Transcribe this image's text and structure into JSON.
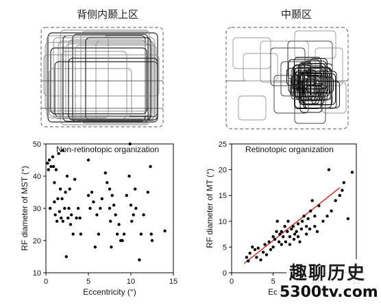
{
  "titles": {
    "left": "背侧内颞上区",
    "right": "中颞区"
  },
  "watermark": {
    "brand": "趣聊历史",
    "url": "5300tv.com"
  },
  "chart_data": [
    {
      "type": "scatter",
      "title": "Non-retinotopic organization",
      "xlabel": "Eccentricity (°)",
      "ylabel": "RF diameter of MST (°)",
      "xlim": [
        0,
        15
      ],
      "ylim": [
        10,
        50
      ],
      "xticks": [
        0,
        5,
        10,
        15
      ],
      "yticks": [
        10,
        20,
        30,
        40,
        50
      ],
      "points": [
        [
          0.2,
          44
        ],
        [
          0.3,
          42
        ],
        [
          0.4,
          45
        ],
        [
          0.5,
          30
        ],
        [
          0.6,
          43
        ],
        [
          0.8,
          46
        ],
        [
          0.9,
          43
        ],
        [
          1.0,
          38
        ],
        [
          1.0,
          32
        ],
        [
          1.1,
          28
        ],
        [
          1.2,
          42
        ],
        [
          1.3,
          26
        ],
        [
          1.4,
          33
        ],
        [
          1.5,
          47
        ],
        [
          1.6,
          29
        ],
        [
          1.7,
          36
        ],
        [
          1.8,
          27
        ],
        [
          1.9,
          33
        ],
        [
          2.0,
          48
        ],
        [
          2.0,
          26
        ],
        [
          2.2,
          30
        ],
        [
          2.3,
          35
        ],
        [
          2.4,
          15
        ],
        [
          2.5,
          40
        ],
        [
          2.6,
          27
        ],
        [
          2.7,
          30
        ],
        [
          2.8,
          36
        ],
        [
          2.9,
          25
        ],
        [
          3.0,
          28
        ],
        [
          3.2,
          22
        ],
        [
          3.4,
          39
        ],
        [
          3.6,
          27
        ],
        [
          3.8,
          30
        ],
        [
          4.0,
          27
        ],
        [
          4.1,
          22
        ],
        [
          5.0,
          45
        ],
        [
          5.0,
          34
        ],
        [
          5.2,
          30
        ],
        [
          5.4,
          35
        ],
        [
          5.6,
          32
        ],
        [
          5.8,
          18
        ],
        [
          6.0,
          28
        ],
        [
          6.2,
          22
        ],
        [
          6.4,
          30
        ],
        [
          6.6,
          33
        ],
        [
          7.0,
          41
        ],
        [
          7.2,
          38
        ],
        [
          7.5,
          36
        ],
        [
          7.5,
          30
        ],
        [
          7.6,
          26
        ],
        [
          7.7,
          18
        ],
        [
          7.8,
          34
        ],
        [
          8.0,
          31
        ],
        [
          8.2,
          28
        ],
        [
          8.4,
          22
        ],
        [
          8.6,
          25
        ],
        [
          8.8,
          20
        ],
        [
          9.0,
          20
        ],
        [
          9.2,
          22
        ],
        [
          9.5,
          34
        ],
        [
          9.8,
          40
        ],
        [
          9.9,
          50
        ],
        [
          10.0,
          31
        ],
        [
          10.1,
          26
        ],
        [
          10.3,
          28
        ],
        [
          10.5,
          36
        ],
        [
          10.6,
          30
        ],
        [
          11.0,
          14
        ],
        [
          11.2,
          22
        ],
        [
          11.5,
          28
        ],
        [
          12.0,
          35
        ],
        [
          12.3,
          43
        ],
        [
          12.4,
          22
        ],
        [
          12.5,
          20
        ],
        [
          14.0,
          23
        ]
      ]
    },
    {
      "type": "scatter",
      "title": "Retinotopic organization",
      "xlabel": "Eccentricity (°)",
      "ylabel": "RF diameter of MT (°)",
      "xlim": [
        0,
        15
      ],
      "ylim": [
        0,
        25
      ],
      "xticks": [
        0,
        5,
        10,
        15
      ],
      "yticks": [
        0,
        5,
        10,
        15,
        20,
        25
      ],
      "fit_line": {
        "x": [
          1.5,
          13
        ],
        "y": [
          1.8,
          16.5
        ],
        "color": "#d62728"
      },
      "points": [
        [
          1.8,
          3
        ],
        [
          2.0,
          2.3
        ],
        [
          2.2,
          3.8
        ],
        [
          2.5,
          5
        ],
        [
          2.8,
          4.5
        ],
        [
          3.0,
          3
        ],
        [
          3.2,
          4.8
        ],
        [
          3.5,
          2.5
        ],
        [
          3.8,
          4
        ],
        [
          4.0,
          5.5
        ],
        [
          4.2,
          3.5
        ],
        [
          4.5,
          6
        ],
        [
          4.7,
          4.5
        ],
        [
          5.0,
          7
        ],
        [
          5.0,
          5
        ],
        [
          5.2,
          6.5
        ],
        [
          5.4,
          8
        ],
        [
          5.5,
          10
        ],
        [
          5.7,
          6
        ],
        [
          5.8,
          7.5
        ],
        [
          6.0,
          8
        ],
        [
          6.0,
          5.5
        ],
        [
          6.2,
          7
        ],
        [
          6.4,
          9
        ],
        [
          6.5,
          6
        ],
        [
          6.7,
          8
        ],
        [
          6.8,
          10
        ],
        [
          7.0,
          7
        ],
        [
          7.0,
          5.5
        ],
        [
          7.2,
          8.5
        ],
        [
          7.4,
          9
        ],
        [
          7.5,
          6.5
        ],
        [
          7.6,
          7.5
        ],
        [
          7.8,
          8
        ],
        [
          8.0,
          9.5
        ],
        [
          8.0,
          7
        ],
        [
          8.2,
          6
        ],
        [
          8.4,
          8.5
        ],
        [
          8.5,
          10
        ],
        [
          8.7,
          11
        ],
        [
          9.0,
          9
        ],
        [
          9.0,
          7.5
        ],
        [
          9.2,
          10.5
        ],
        [
          9.4,
          8.5
        ],
        [
          9.5,
          12
        ],
        [
          9.7,
          14
        ],
        [
          10.0,
          11
        ],
        [
          10.0,
          9
        ],
        [
          10.3,
          8
        ],
        [
          10.5,
          13
        ],
        [
          11.0,
          10
        ],
        [
          11.5,
          11
        ],
        [
          11.7,
          20
        ],
        [
          12.0,
          12
        ],
        [
          12.5,
          14
        ],
        [
          13.0,
          15
        ],
        [
          13.3,
          16
        ],
        [
          13.5,
          17.5
        ],
        [
          14.0,
          10.5
        ],
        [
          14.5,
          19.5
        ]
      ]
    }
  ]
}
